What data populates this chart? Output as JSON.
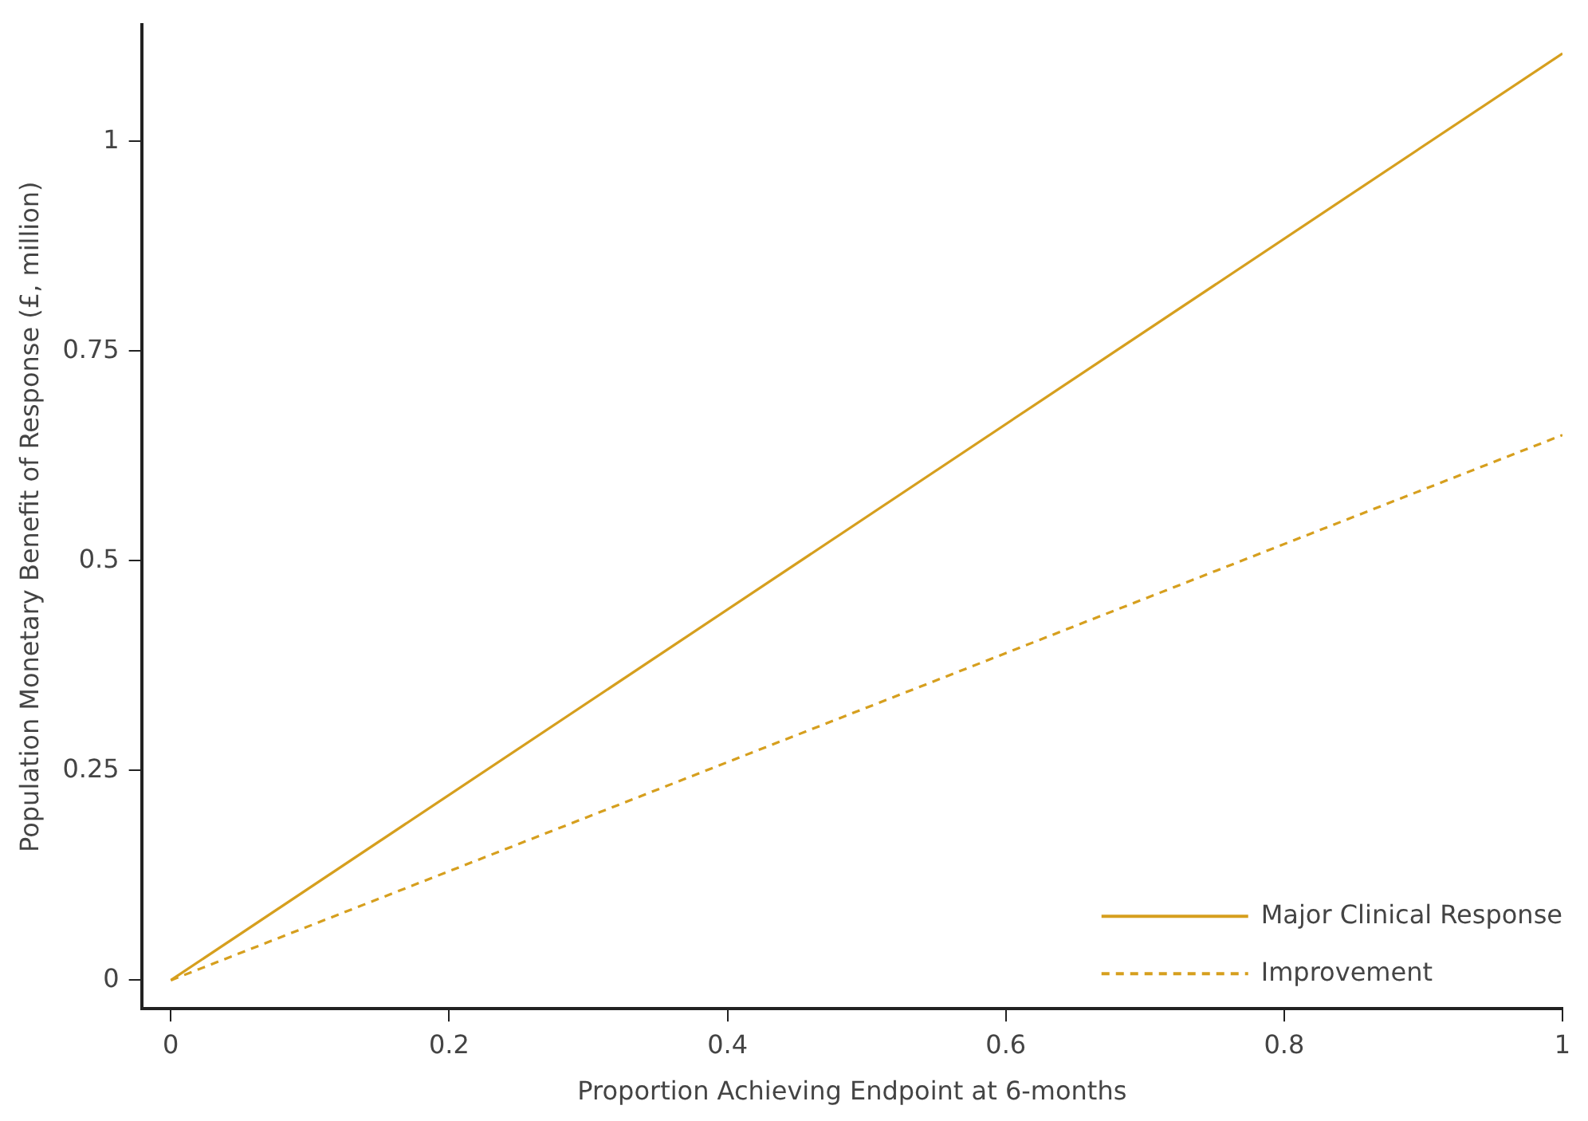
{
  "chart_data": {
    "type": "line",
    "xlabel": "Proportion Achieving Endpoint at 6-months",
    "ylabel": "Population Monetary Benefit of Response (£, million)",
    "x": [
      0,
      1
    ],
    "series": [
      {
        "name": "Major Clinical Response",
        "color": "#d69f1e",
        "values": [
          0,
          1.105
        ],
        "line_style": "solid"
      },
      {
        "name": "Improvement",
        "color": "#d69f1e",
        "values": [
          0,
          0.65
        ],
        "line_style": "dashed"
      }
    ],
    "xlim": [
      -0.021,
      1
    ],
    "xticks": [
      {
        "value": 0,
        "label": "0"
      },
      0.2,
      0.4,
      0.6,
      0.8,
      {
        "value": 1,
        "label": "1"
      }
    ],
    "ylim": [
      -0.034,
      1.139
    ],
    "yticks": [
      {
        "value": 0,
        "label": "0"
      },
      0.25,
      0.5,
      0.75,
      {
        "value": 1,
        "label": "1"
      }
    ],
    "grid": false,
    "legend": "bottom right",
    "marker": "none"
  }
}
